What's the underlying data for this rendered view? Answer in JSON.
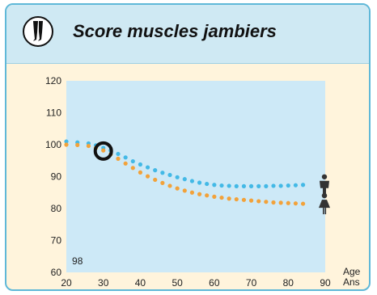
{
  "card": {
    "title": "Score muscles jambiers",
    "icon": "legs-icon"
  },
  "colors": {
    "male_series": "#43b9e6",
    "female_series": "#f2a23a",
    "plot_background": "#cde9f7",
    "card_background": "#fff4dc",
    "header_background": "#cfe9f3",
    "border": "#5fb8d8"
  },
  "chart_data": {
    "type": "scatter",
    "title": "Score muscles jambiers",
    "xlabel": "Age Ans",
    "xlabel_lines": [
      "Age",
      "Ans"
    ],
    "ylabel": "",
    "xlim": [
      20,
      90
    ],
    "ylim": [
      60,
      120
    ],
    "xticks": [
      20,
      30,
      40,
      50,
      60,
      70,
      80,
      90
    ],
    "yticks": [
      60,
      70,
      80,
      90,
      100,
      110,
      120
    ],
    "grid": false,
    "series": [
      {
        "icon": "male-icon",
        "color": "#43b9e6",
        "x": [
          20,
          23,
          26,
          28,
          30,
          32,
          34,
          36,
          38,
          40,
          42,
          44,
          46,
          48,
          50,
          52,
          54,
          56,
          58,
          60,
          62,
          64,
          66,
          68,
          70,
          72,
          74,
          76,
          78,
          80,
          82,
          84
        ],
        "y": [
          101.0,
          100.7,
          100.4,
          99.8,
          99.0,
          98.2,
          97.1,
          96.0,
          94.8,
          93.8,
          92.9,
          92.0,
          91.2,
          90.5,
          89.8,
          89.2,
          88.6,
          88.1,
          87.7,
          87.4,
          87.2,
          87.1,
          87.0,
          87.0,
          87.0,
          87.0,
          87.0,
          87.1,
          87.1,
          87.2,
          87.3,
          87.4
        ]
      },
      {
        "icon": "female-icon",
        "color": "#f2a23a",
        "x": [
          20,
          23,
          26,
          28,
          30,
          32,
          34,
          36,
          38,
          40,
          42,
          44,
          46,
          48,
          50,
          52,
          54,
          56,
          58,
          60,
          62,
          64,
          66,
          68,
          70,
          72,
          74,
          76,
          78,
          80,
          82,
          84
        ],
        "y": [
          100.0,
          99.9,
          99.6,
          99.0,
          98.2,
          97.0,
          95.6,
          94.1,
          92.7,
          91.3,
          90.1,
          89.0,
          88.0,
          87.1,
          86.3,
          85.6,
          85.0,
          84.5,
          84.1,
          83.7,
          83.4,
          83.1,
          82.9,
          82.7,
          82.5,
          82.3,
          82.1,
          81.9,
          81.8,
          81.7,
          81.6,
          81.5
        ]
      }
    ],
    "marker": {
      "x": 30,
      "y": 98
    },
    "annotation": {
      "text": "98",
      "x": 23
    }
  }
}
